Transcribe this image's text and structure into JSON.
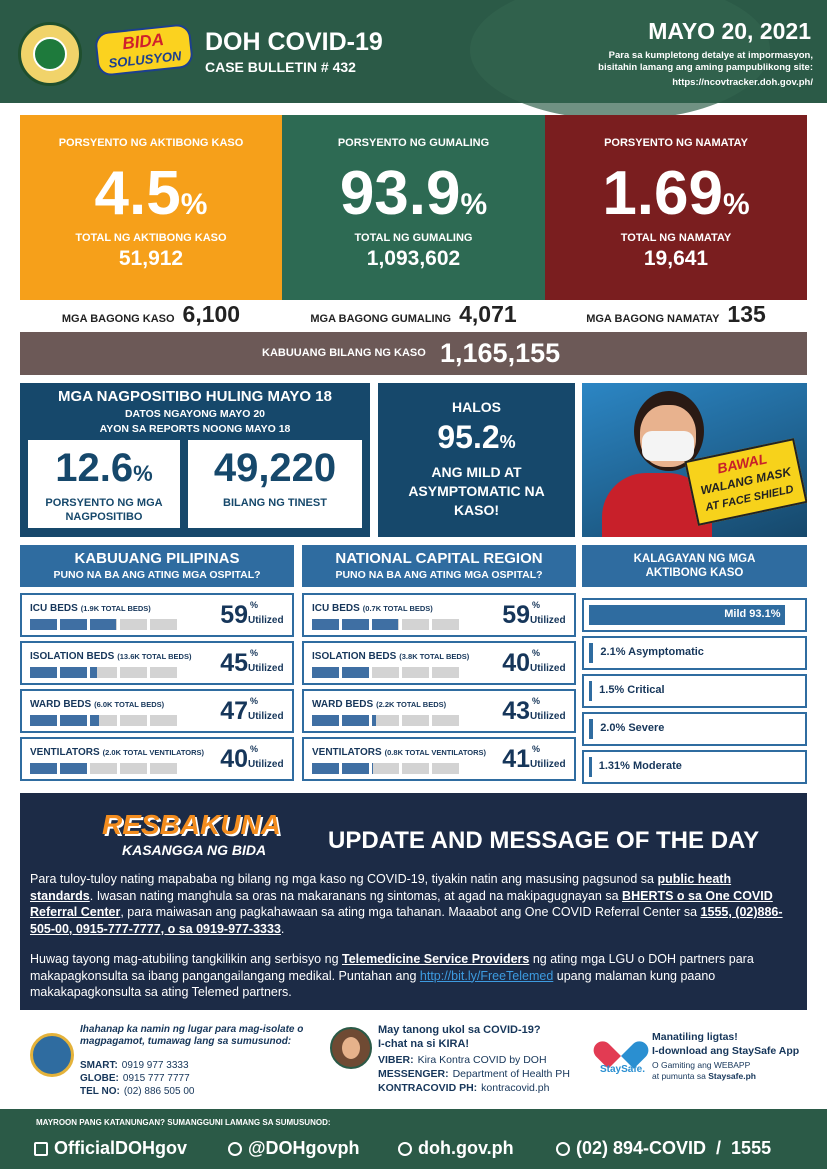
{
  "header": {
    "badge_top": "BIDA",
    "badge_bottom": "SOLUSYON",
    "title": "DOH COVID-19",
    "subtitle": "CASE BULLETIN # 432",
    "date": "MAYO 20, 2021",
    "info": "Para sa kumpletong detalye at impormasyon, bisitahin lamang ang aming pampublikong site:",
    "url": "https://ncovtracker.doh.gov.ph/"
  },
  "stats": [
    {
      "label": "PORSYENTO NG AKTIBONG KASO",
      "percent": "4.5",
      "unit": "%",
      "total_label": "TOTAL NG AKTIBONG KASO",
      "total": "51,912",
      "new_label": "MGA BAGONG KASO",
      "new": "6,100"
    },
    {
      "label": "PORSYENTO NG GUMALING",
      "percent": "93.9",
      "unit": "%",
      "total_label": "TOTAL NG GUMALING",
      "total": "1,093,602",
      "new_label": "MGA BAGONG GUMALING",
      "new": "4,071"
    },
    {
      "label": "PORSYENTO NG NAMATAY",
      "percent": "1.69",
      "unit": "%",
      "total_label": "TOTAL NG NAMATAY",
      "total": "19,641",
      "new_label": "MGA BAGONG NAMATAY",
      "new": "135"
    }
  ],
  "total_cases": {
    "label": "KABUUANG BILANG NG KASO",
    "value": "1,165,155"
  },
  "positivity": {
    "title": "MGA NAGPOSITIBO HULING MAYO 18",
    "sub1": "DATOS NGAYONG MAYO 20",
    "sub2": "AYON SA REPORTS NOONG MAYO 18",
    "items": [
      {
        "value": "12.6",
        "unit": "%",
        "label": "PORSYENTO NG MGA NAGPOSITIBO"
      },
      {
        "value": "49,220",
        "unit": "",
        "label": "BILANG NG TINEST"
      }
    ]
  },
  "mild": {
    "lead": "HALOS",
    "value": "95.2",
    "unit": "%",
    "text": "ANG MILD AT ASYMPTOMATIC NA KASO!"
  },
  "poster": {
    "line1": "BAWAL",
    "line2": "WALANG MASK",
    "line3": "AT FACE SHIELD"
  },
  "hospital_unit": "%",
  "hospital_label": "Utilized",
  "hospitals": [
    {
      "title": "KABUUANG PILIPINAS",
      "subtitle": "PUNO NA BA ANG ATING MGA OSPITAL?",
      "rows": [
        {
          "name": "ICU BEDS",
          "detail": "(1.9K TOTAL BEDS)",
          "utilized": 59
        },
        {
          "name": "ISOLATION BEDS",
          "detail": "(13.6K TOTAL BEDS)",
          "utilized": 45
        },
        {
          "name": "WARD BEDS",
          "detail": "(6.0K TOTAL BEDS)",
          "utilized": 47
        },
        {
          "name": "VENTILATORS",
          "detail": "(2.0K TOTAL VENTILATORS)",
          "utilized": 40
        }
      ]
    },
    {
      "title": "NATIONAL CAPITAL REGION",
      "subtitle": "PUNO NA BA ANG ATING MGA OSPITAL?",
      "rows": [
        {
          "name": "ICU BEDS",
          "detail": "(0.7K TOTAL BEDS)",
          "utilized": 59
        },
        {
          "name": "ISOLATION BEDS",
          "detail": "(3.8K TOTAL BEDS)",
          "utilized": 40
        },
        {
          "name": "WARD BEDS",
          "detail": "(2.2K TOTAL BEDS)",
          "utilized": 43
        },
        {
          "name": "VENTILATORS",
          "detail": "(0.8K TOTAL VENTILATORS)",
          "utilized": 41
        }
      ]
    }
  ],
  "status": {
    "title": "KALAGAYAN NG MGA AKTIBONG KASO",
    "items": [
      {
        "label": "Mild 93.1%",
        "value": 93.1
      },
      {
        "label": "2.1% Asymptomatic",
        "value": 2.1
      },
      {
        "label": "1.5% Critical",
        "value": 1.5
      },
      {
        "label": "2.0% Severe",
        "value": 2.0
      },
      {
        "label": "1.31% Moderate",
        "value": 1.31
      }
    ]
  },
  "message": {
    "logo_top": "RESBAKUNA",
    "logo_bottom": "KASANGGA NG BIDA",
    "title": "UPDATE AND MESSAGE OF THE DAY",
    "paragraphs": [
      [
        "Para tuloy-tuloy nating mapababa ng bilang ng mga kaso ng COVID-19, tiyakin natin ang masusing pagsunod sa ",
        "public heath standards",
        ". Iwasan nating manghula sa oras na makaranans ng sintomas, at agad na makipagugnayan sa ",
        "BHERTS o sa One COVID Referral Center",
        ", para maiwasan ang pagkahawaan sa ating mga tahanan. Maaabot ang One COVID Referral Center sa ",
        "1555, (02)886-505-00, 0915-777-7777, o sa 0919-977-3333",
        "."
      ],
      [
        "Huwag tayong mag-atubiling tangkilikin ang serbisyo ng ",
        "Telemedicine Service Providers",
        " ng ating mga LGU o DOH partners para makapagkonsulta sa ibang pangangailangang medikal. Puntahan ang ",
        "http://bit.ly/FreeTelemed",
        " upang malaman kung paano makakapagkonsulta sa ating Telemed partners."
      ]
    ]
  },
  "contacts": {
    "isolation": {
      "text": "Ihahanap ka namin ng lugar para mag-isolate o magpagamot, tumawag lang sa sumusunod:",
      "lines": [
        [
          "SMART:",
          "0919 977 3333"
        ],
        [
          "GLOBE:",
          "0915 777 7777"
        ],
        [
          "TEL NO:",
          "(02) 886 505 00"
        ]
      ]
    },
    "kira": {
      "q1": "May tanong ukol sa COVID-19?",
      "q2": "I-chat na si KIRA!",
      "lines": [
        [
          "VIBER:",
          "Kira Kontra COVID by DOH"
        ],
        [
          "MESSENGER:",
          "Department of Health PH"
        ],
        [
          "KONTRACOVID PH:",
          "kontracovid.ph"
        ]
      ]
    },
    "staysafe": {
      "logo": "StaySafe.",
      "t1": "Manatiling ligtas!",
      "t2": "I-download ang StaySafe App",
      "t3": "O Gamiting ang WEBAPP",
      "t4": "at pumunta sa ",
      "t5": "Staysafe.ph"
    }
  },
  "footer": {
    "note": "MAYROON PANG KATANUNGAN? SUMANGGUNI LAMANG SA SUMUSUNOD:",
    "facebook": "OfficialDOHgov",
    "twitter": "@DOHgovph",
    "web": "doh.gov.ph",
    "phone": "(02) 894-COVID  /  1555"
  }
}
